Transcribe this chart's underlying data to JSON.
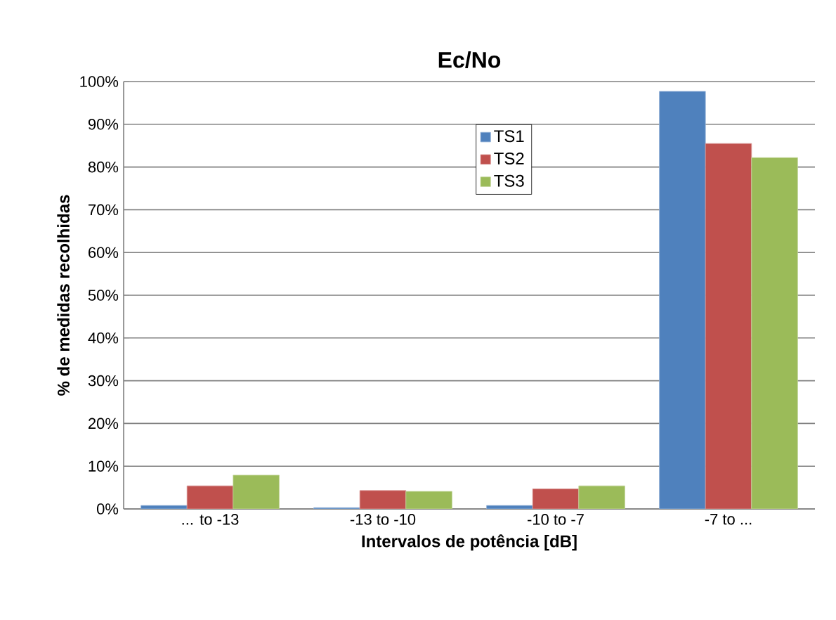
{
  "chart_data": {
    "type": "bar",
    "title": "Ec/No",
    "xlabel": "Intervalos de potência [dB]",
    "ylabel": "% de medidas recolhidas",
    "categories": [
      "... to -13",
      "-13 to -10",
      "-10 to -7",
      "-7 to ..."
    ],
    "series": [
      {
        "name": "TS1",
        "color": "#4f81bd",
        "values": [
          0.8,
          0.3,
          0.8,
          97.7
        ]
      },
      {
        "name": "TS2",
        "color": "#c0504d",
        "values": [
          5.4,
          4.3,
          4.7,
          85.5
        ]
      },
      {
        "name": "TS3",
        "color": "#9bbb59",
        "values": [
          7.9,
          4.1,
          5.4,
          82.2
        ]
      }
    ],
    "ylim": [
      0,
      100
    ],
    "yticks": [
      {
        "value": 0,
        "label": "0%"
      },
      {
        "value": 10,
        "label": "10%"
      },
      {
        "value": 20,
        "label": "20%"
      },
      {
        "value": 30,
        "label": "30%"
      },
      {
        "value": 40,
        "label": "40%"
      },
      {
        "value": 50,
        "label": "50%"
      },
      {
        "value": 60,
        "label": "60%"
      },
      {
        "value": 70,
        "label": "70%"
      },
      {
        "value": 80,
        "label": "80%"
      },
      {
        "value": 90,
        "label": "90%"
      },
      {
        "value": 100,
        "label": "100%"
      }
    ],
    "grid": "y",
    "legend": "top"
  }
}
